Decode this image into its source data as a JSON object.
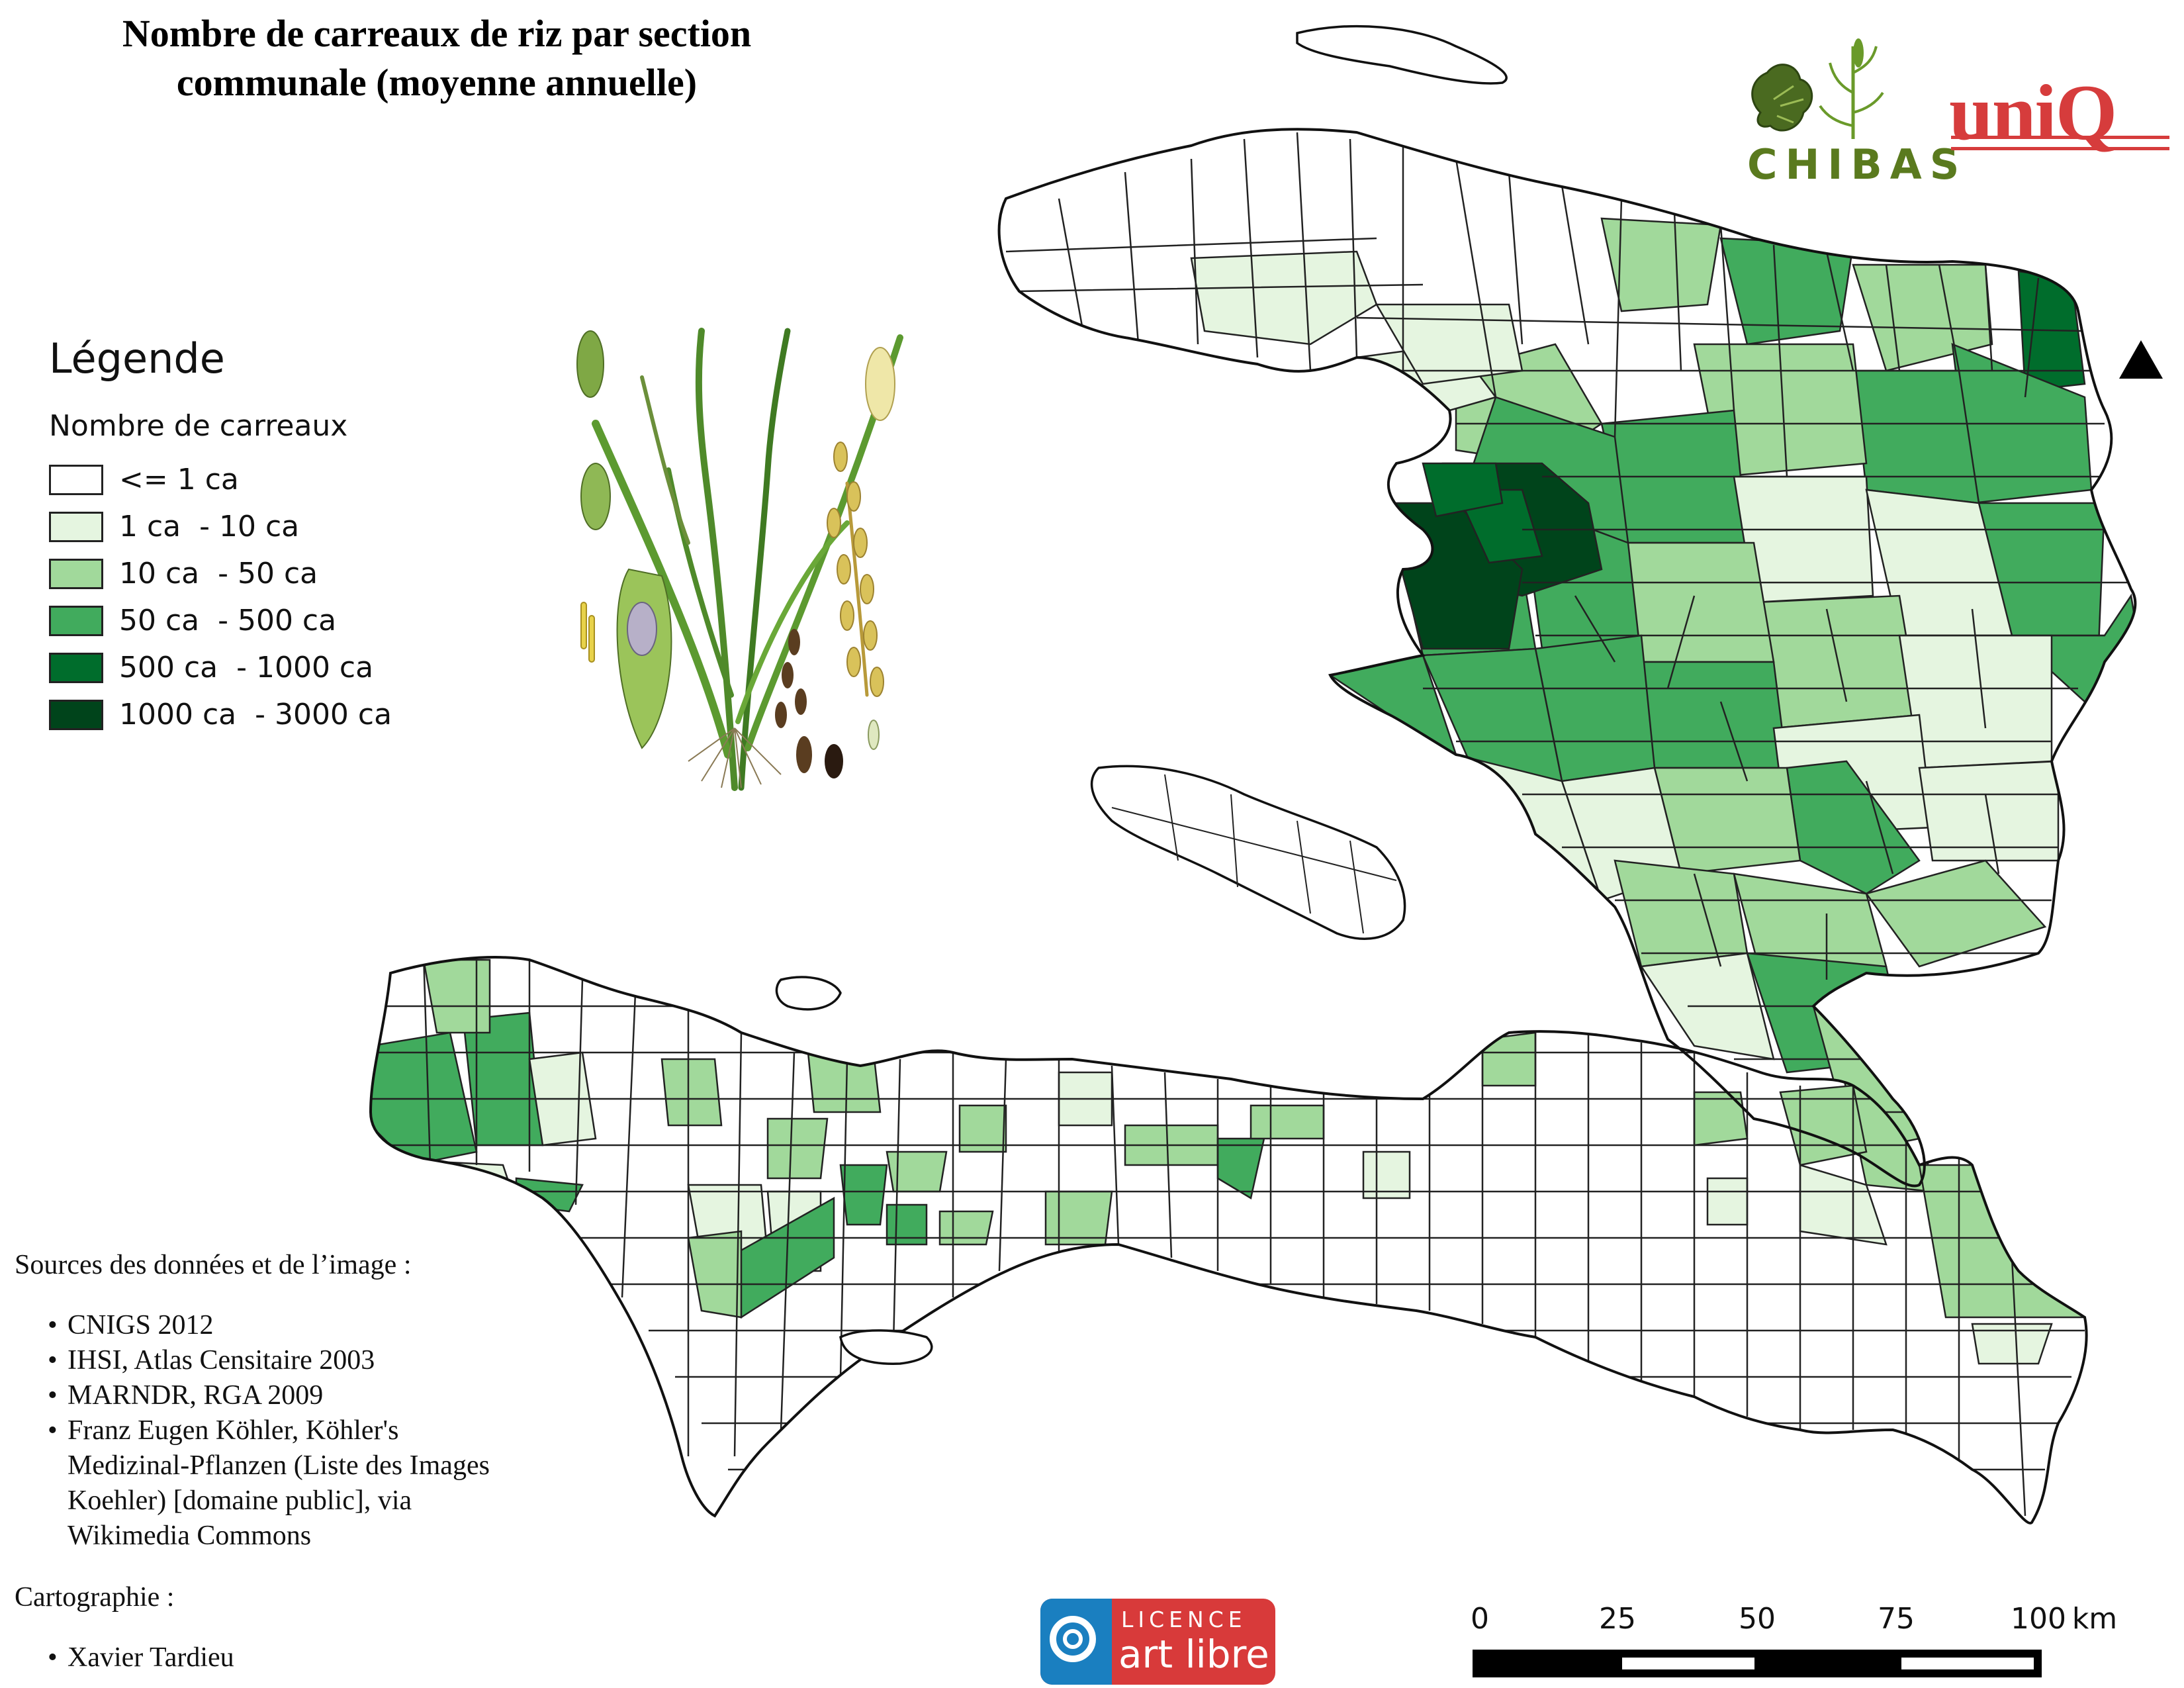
{
  "title": {
    "line1": "Nombre de carreaux de riz par section",
    "line2": "communale (moyenne annuelle)"
  },
  "legend": {
    "title": "Légende",
    "subtitle": "Nombre de carreaux",
    "classes": [
      {
        "label": "<= 1 ca",
        "color": "#ffffff"
      },
      {
        "label": "1 ca  - 10 ca",
        "color": "#e5f5e0"
      },
      {
        "label": "10 ca  - 50 ca",
        "color": "#a1d99b"
      },
      {
        "label": "50 ca  - 500 ca",
        "color": "#41ab5d"
      },
      {
        "label": "500 ca  - 1000 ca",
        "color": "#006d2c"
      },
      {
        "label": "1000 ca  - 3000 ca",
        "color": "#00441b"
      }
    ]
  },
  "sources": {
    "heading": "Sources des données et de l’image :",
    "items": [
      "CNIGS 2012",
      "IHSI, Atlas Censitaire 2003",
      "MARNDR, RGA 2009",
      "Franz Eugen Köhler, Köhler's",
      "Medizinal-Pflanzen (Liste des Images",
      "Koehler) [domaine public], via",
      "Wikimedia Commons"
    ]
  },
  "cartography": {
    "heading": "Cartographie :",
    "author": "Xavier Tardieu"
  },
  "logos": {
    "chibas": "CHIBAS",
    "unio": "uniQ",
    "licence_top": "LICENCE",
    "licence_bottom": "art libre"
  },
  "scale": {
    "ticks": [
      "0",
      "25",
      "50",
      "75",
      "100"
    ],
    "unit": "km"
  }
}
